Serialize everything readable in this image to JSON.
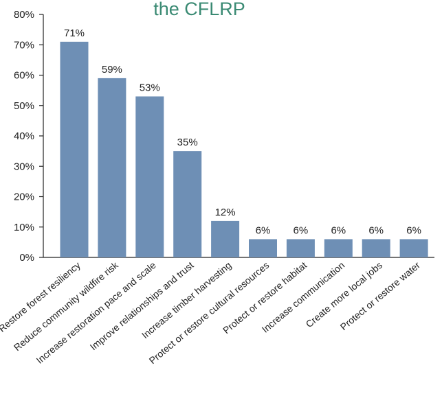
{
  "chart_data": {
    "type": "bar",
    "title": "the CFLRP",
    "categories": [
      "Restore forest resiliency",
      "Reduce community wildfire risk",
      "Increase restoration pace and scale",
      "Improve relationships and trust",
      "Increase timber harvesting",
      "Protect or restore cultural resources",
      "Protect or restore habitat",
      "Increase communication",
      "Create more local jobs",
      "Protect or restore water"
    ],
    "values": [
      71,
      59,
      53,
      35,
      12,
      6,
      6,
      6,
      6,
      6
    ],
    "value_labels": [
      "71%",
      "59%",
      "53%",
      "35%",
      "12%",
      "6%",
      "6%",
      "6%",
      "6%",
      "6%"
    ],
    "color": "#6e8fb5",
    "ylim": [
      0,
      80
    ],
    "yticks": [
      {
        "value": 0,
        "label": "0%"
      },
      {
        "value": 10,
        "label": "10%"
      },
      {
        "value": 20,
        "label": "20%"
      },
      {
        "value": 30,
        "label": "30%"
      },
      {
        "value": 40,
        "label": "40%"
      },
      {
        "value": 50,
        "label": "50%"
      },
      {
        "value": 60,
        "label": "60%"
      },
      {
        "value": 70,
        "label": "70%"
      },
      {
        "value": 80,
        "label": "80%"
      }
    ]
  }
}
